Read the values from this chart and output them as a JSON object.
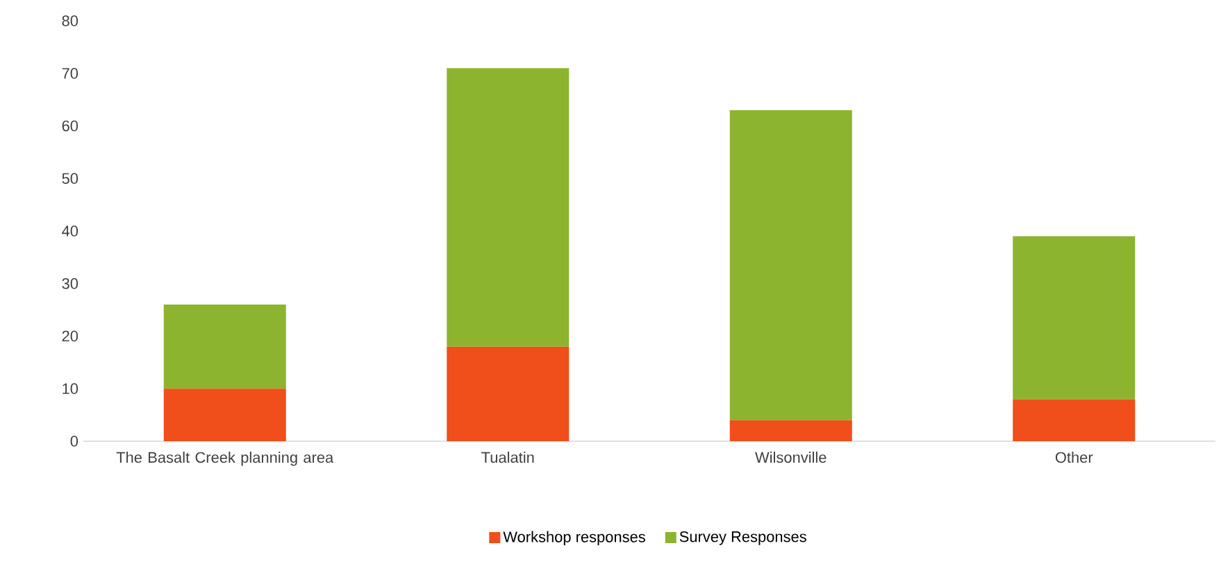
{
  "chart_data": {
    "type": "bar",
    "stacked": true,
    "categories": [
      "The Basalt Creek planning area",
      "Tualatin",
      "Wilsonville",
      "Other"
    ],
    "series": [
      {
        "name": "Workshop responses",
        "color": "#f04e1b",
        "values": [
          10,
          18,
          4,
          8
        ]
      },
      {
        "name": "Survey Responses",
        "color": "#8db42e",
        "values": [
          16,
          53,
          59,
          31
        ]
      }
    ],
    "ylim": [
      0,
      80
    ],
    "yticks": [
      0,
      10,
      20,
      30,
      40,
      50,
      60,
      70,
      80
    ],
    "legend": "bottom"
  }
}
